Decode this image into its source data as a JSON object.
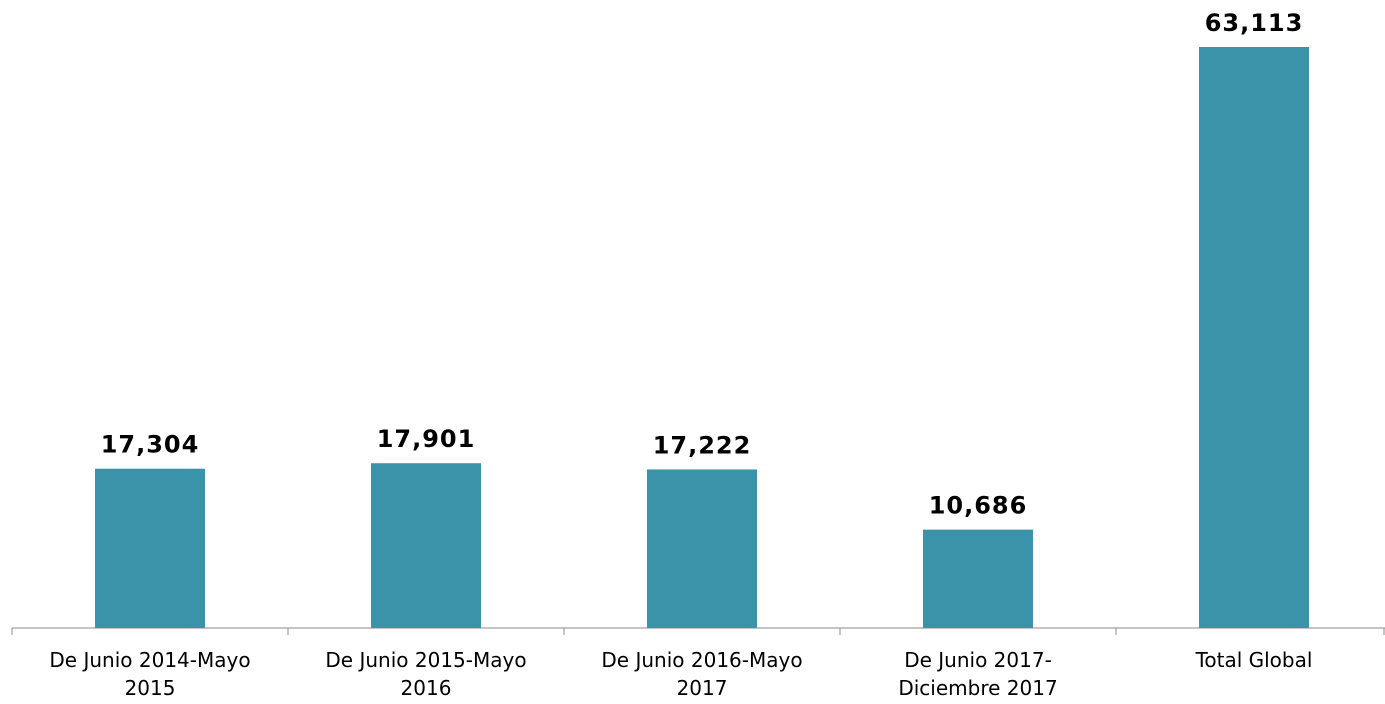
{
  "chart_data": {
    "type": "bar",
    "categories": [
      "De Junio 2014-Mayo 2015",
      "De Junio 2015-Mayo 2016",
      "De Junio 2016-Mayo 2017",
      "De Junio 2017-Diciembre 2017",
      "Total Global"
    ],
    "values": [
      17304,
      17901,
      17222,
      10686,
      63113
    ],
    "value_labels": [
      "17,304",
      "17,901",
      "17,222",
      "10,686",
      "63,113"
    ],
    "color": "#3a93a8"
  }
}
